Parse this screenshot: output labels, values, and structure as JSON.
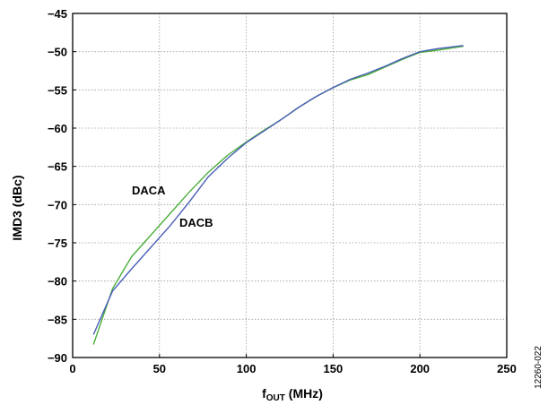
{
  "figure_id": "12260-022",
  "chart_data": {
    "type": "line",
    "xlabel_main": "f",
    "xlabel_sub": "OUT",
    "xlabel_unit": " (MHz)",
    "ylabel": "IMD3 (dBc)",
    "xlim": [
      0,
      250
    ],
    "ylim": [
      -90,
      -45
    ],
    "xticks": [
      0,
      50,
      100,
      150,
      200,
      250
    ],
    "yticks": [
      -45,
      -50,
      -55,
      -60,
      -65,
      -70,
      -75,
      -80,
      -85,
      -90
    ],
    "grid": true,
    "annotations": [
      "DACA",
      "DACB"
    ],
    "series": [
      {
        "name": "DACA",
        "color": "#4caf3a",
        "x": [
          12,
          23,
          34,
          45,
          56,
          67,
          78,
          89,
          100,
          110,
          120,
          130,
          140,
          150,
          160,
          170,
          180,
          190,
          200,
          210,
          225
        ],
        "y": [
          -88.3,
          -81.0,
          -76.8,
          -74.0,
          -71.2,
          -68.4,
          -65.8,
          -63.6,
          -61.8,
          -60.3,
          -58.9,
          -57.3,
          -55.9,
          -54.7,
          -53.7,
          -53.0,
          -52.0,
          -51.0,
          -50.1,
          -49.8,
          -49.3
        ]
      },
      {
        "name": "DACB",
        "color": "#4a5fb8",
        "x": [
          12,
          23,
          34,
          45,
          56,
          67,
          78,
          89,
          100,
          110,
          120,
          130,
          140,
          150,
          160,
          170,
          180,
          190,
          200,
          210,
          225
        ],
        "y": [
          -87.0,
          -81.3,
          -78.4,
          -75.6,
          -72.8,
          -69.7,
          -66.4,
          -64.0,
          -61.9,
          -60.4,
          -58.9,
          -57.3,
          -55.9,
          -54.7,
          -53.6,
          -52.8,
          -51.9,
          -50.9,
          -50.0,
          -49.6,
          -49.2
        ]
      }
    ]
  }
}
